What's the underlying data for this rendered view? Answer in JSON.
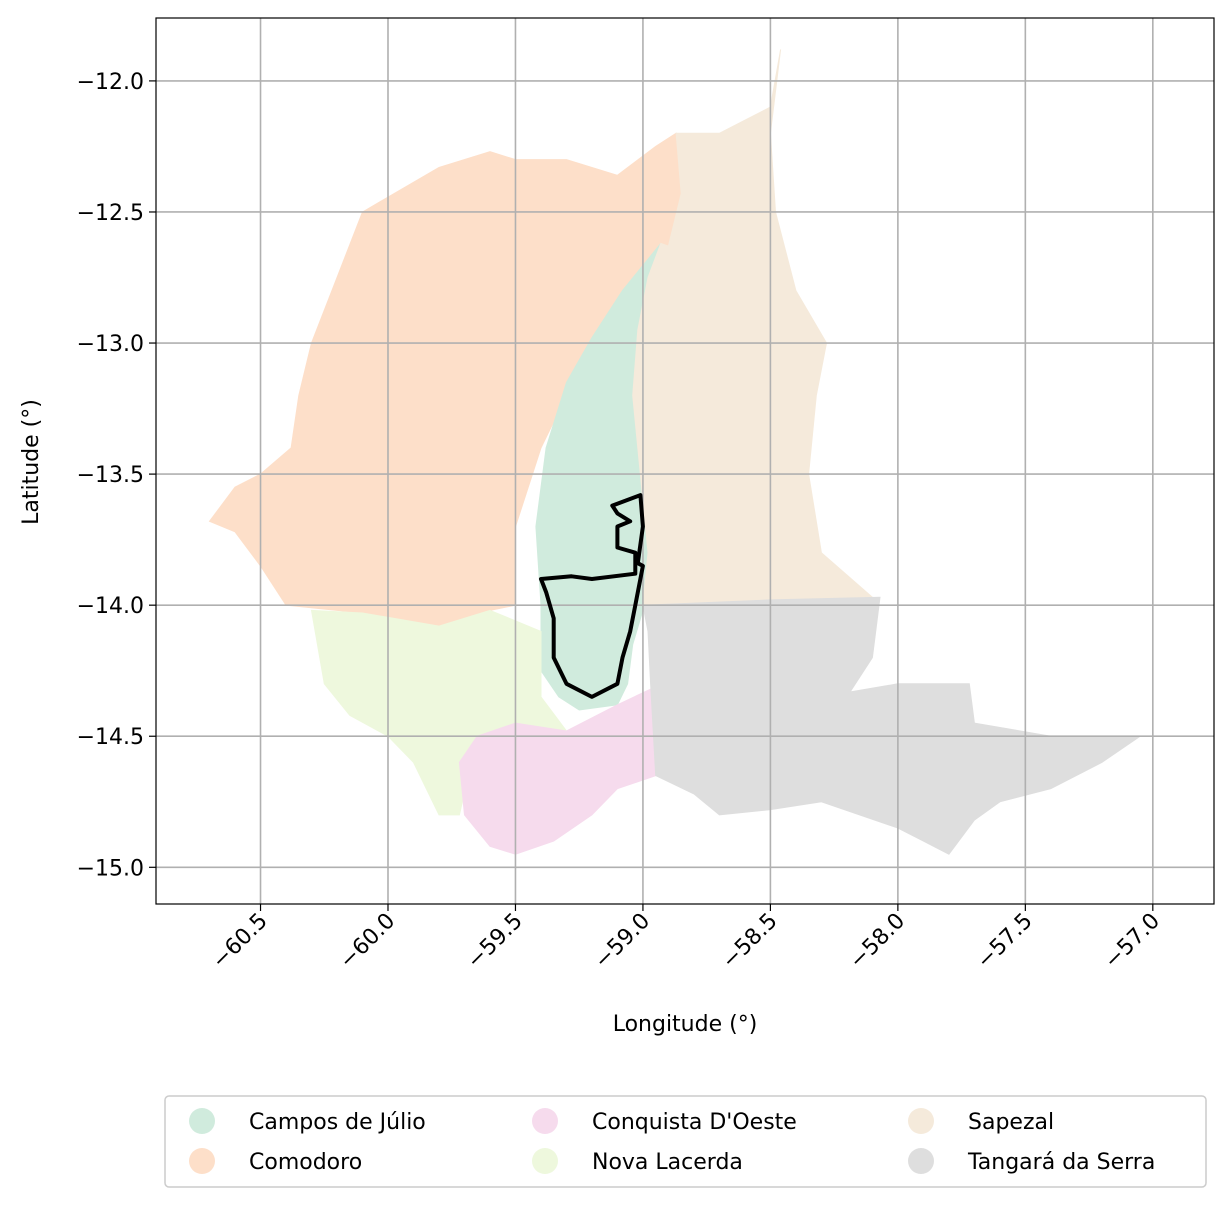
{
  "chart_data": {
    "type": "map",
    "title": "",
    "xlabel": "Longitude (°)",
    "ylabel": "Latitude (°)",
    "xlim": [
      -60.91,
      -56.76
    ],
    "ylim": [
      -15.14,
      -11.76
    ],
    "xticks": [
      -60.5,
      -60.0,
      -59.5,
      -59.0,
      -58.5,
      -58.0,
      -57.5,
      -57.0
    ],
    "xtick_labels": [
      "−60.5",
      "−60.0",
      "−59.5",
      "−59.0",
      "−58.5",
      "−58.0",
      "−57.5",
      "−57.0"
    ],
    "yticks": [
      -12.0,
      -12.5,
      -13.0,
      -13.5,
      -14.0,
      -14.5,
      -15.0
    ],
    "ytick_labels": [
      "−12.0",
      "−12.5",
      "−13.0",
      "−13.5",
      "−14.0",
      "−14.5",
      "−15.0"
    ],
    "grid": true,
    "legend_position": "bottom",
    "legend_columns": 3,
    "regions": [
      {
        "name": "Comodoro",
        "color": "#fddfc9",
        "polygon": [
          [
            -60.1,
            -12.5
          ],
          [
            -59.8,
            -12.33
          ],
          [
            -59.6,
            -12.27
          ],
          [
            -59.5,
            -12.3
          ],
          [
            -59.3,
            -12.3
          ],
          [
            -59.1,
            -12.36
          ],
          [
            -58.95,
            -12.25
          ],
          [
            -58.87,
            -12.2
          ],
          [
            -58.85,
            -12.43
          ],
          [
            -58.9,
            -12.63
          ],
          [
            -58.95,
            -12.75
          ],
          [
            -59.1,
            -12.84
          ],
          [
            -59.2,
            -13.0
          ],
          [
            -59.3,
            -13.2
          ],
          [
            -59.4,
            -13.4
          ],
          [
            -59.5,
            -13.7
          ],
          [
            -59.5,
            -14.0
          ],
          [
            -59.6,
            -14.02
          ],
          [
            -59.8,
            -14.08
          ],
          [
            -60.1,
            -14.03
          ],
          [
            -60.4,
            -14.0
          ],
          [
            -60.5,
            -13.85
          ],
          [
            -60.6,
            -13.72
          ],
          [
            -60.7,
            -13.68
          ],
          [
            -60.6,
            -13.55
          ],
          [
            -60.5,
            -13.5
          ],
          [
            -60.38,
            -13.4
          ],
          [
            -60.35,
            -13.2
          ],
          [
            -60.3,
            -13.0
          ],
          [
            -60.2,
            -12.75
          ]
        ]
      },
      {
        "name": "Campos de Júlio",
        "color": "#d0ebdd",
        "polygon": [
          [
            -58.93,
            -12.62
          ],
          [
            -58.98,
            -12.75
          ],
          [
            -59.02,
            -12.95
          ],
          [
            -59.04,
            -13.2
          ],
          [
            -59.0,
            -13.6
          ],
          [
            -58.98,
            -13.8
          ],
          [
            -59.0,
            -14.02
          ],
          [
            -59.04,
            -14.15
          ],
          [
            -59.06,
            -14.3
          ],
          [
            -59.1,
            -14.38
          ],
          [
            -59.25,
            -14.4
          ],
          [
            -59.33,
            -14.35
          ],
          [
            -59.4,
            -14.25
          ],
          [
            -59.4,
            -14.0
          ],
          [
            -59.42,
            -13.7
          ],
          [
            -59.38,
            -13.4
          ],
          [
            -59.3,
            -13.15
          ],
          [
            -59.2,
            -12.98
          ],
          [
            -59.08,
            -12.8
          ]
        ]
      },
      {
        "name": "Sapezal",
        "color": "#f5eadb",
        "polygon": [
          [
            -58.46,
            -11.88
          ],
          [
            -58.5,
            -12.1
          ],
          [
            -58.6,
            -12.15
          ],
          [
            -58.7,
            -12.2
          ],
          [
            -58.87,
            -12.2
          ],
          [
            -58.85,
            -12.43
          ],
          [
            -58.9,
            -12.63
          ],
          [
            -58.93,
            -12.62
          ],
          [
            -58.98,
            -12.75
          ],
          [
            -59.02,
            -12.95
          ],
          [
            -59.04,
            -13.2
          ],
          [
            -59.0,
            -13.6
          ],
          [
            -58.98,
            -13.8
          ],
          [
            -59.0,
            -14.0
          ],
          [
            -58.5,
            -13.98
          ],
          [
            -58.1,
            -13.97
          ],
          [
            -58.3,
            -13.8
          ],
          [
            -58.35,
            -13.5
          ],
          [
            -58.32,
            -13.2
          ],
          [
            -58.28,
            -13.0
          ],
          [
            -58.4,
            -12.8
          ],
          [
            -58.48,
            -12.5
          ],
          [
            -58.5,
            -12.2
          ]
        ]
      },
      {
        "name": "Nova Lacerda",
        "color": "#eef8dd",
        "polygon": [
          [
            -60.3,
            -14.02
          ],
          [
            -60.1,
            -14.03
          ],
          [
            -59.8,
            -14.08
          ],
          [
            -59.6,
            -14.02
          ],
          [
            -59.4,
            -14.1
          ],
          [
            -59.4,
            -14.35
          ],
          [
            -59.3,
            -14.48
          ],
          [
            -59.5,
            -14.5
          ],
          [
            -59.65,
            -14.5
          ],
          [
            -59.72,
            -14.8
          ],
          [
            -59.8,
            -14.8
          ],
          [
            -59.9,
            -14.6
          ],
          [
            -60.0,
            -14.5
          ],
          [
            -60.15,
            -14.42
          ],
          [
            -60.25,
            -14.3
          ]
        ]
      },
      {
        "name": "Conquista D'Oeste",
        "color": "#f6dbed",
        "polygon": [
          [
            -59.65,
            -14.5
          ],
          [
            -59.5,
            -14.45
          ],
          [
            -59.3,
            -14.48
          ],
          [
            -59.1,
            -14.38
          ],
          [
            -58.97,
            -14.32
          ],
          [
            -58.95,
            -14.65
          ],
          [
            -59.1,
            -14.7
          ],
          [
            -59.2,
            -14.8
          ],
          [
            -59.35,
            -14.9
          ],
          [
            -59.5,
            -14.95
          ],
          [
            -59.6,
            -14.92
          ],
          [
            -59.7,
            -14.8
          ],
          [
            -59.72,
            -14.6
          ]
        ]
      },
      {
        "name": "Tangará da Serra",
        "color": "#dedede",
        "polygon": [
          [
            -59.0,
            -14.0
          ],
          [
            -58.5,
            -13.98
          ],
          [
            -58.07,
            -13.97
          ],
          [
            -58.1,
            -14.2
          ],
          [
            -58.2,
            -14.35
          ],
          [
            -58.3,
            -14.35
          ],
          [
            -58.0,
            -14.3
          ],
          [
            -57.72,
            -14.3
          ],
          [
            -57.7,
            -14.45
          ],
          [
            -57.4,
            -14.5
          ],
          [
            -57.2,
            -14.5
          ],
          [
            -57.05,
            -14.5
          ],
          [
            -57.2,
            -14.6
          ],
          [
            -57.4,
            -14.7
          ],
          [
            -57.6,
            -14.75
          ],
          [
            -57.7,
            -14.82
          ],
          [
            -57.8,
            -14.95
          ],
          [
            -57.9,
            -14.9
          ],
          [
            -58.0,
            -14.85
          ],
          [
            -58.3,
            -14.75
          ],
          [
            -58.5,
            -14.78
          ],
          [
            -58.7,
            -14.8
          ],
          [
            -58.8,
            -14.72
          ],
          [
            -58.95,
            -14.65
          ],
          [
            -58.97,
            -14.3
          ],
          [
            -58.98,
            -14.1
          ]
        ]
      }
    ],
    "highlight_outline": {
      "name": "",
      "color": "#000000",
      "polygon": [
        [
          -59.12,
          -13.62
        ],
        [
          -59.01,
          -13.58
        ],
        [
          -59.0,
          -13.7
        ],
        [
          -59.02,
          -13.84
        ],
        [
          -59.0,
          -13.85
        ],
        [
          -59.03,
          -14.0
        ],
        [
          -59.05,
          -14.1
        ],
        [
          -59.08,
          -14.2
        ],
        [
          -59.1,
          -14.3
        ],
        [
          -59.2,
          -14.35
        ],
        [
          -59.3,
          -14.3
        ],
        [
          -59.35,
          -14.2
        ],
        [
          -59.35,
          -14.05
        ],
        [
          -59.38,
          -13.95
        ],
        [
          -59.4,
          -13.9
        ],
        [
          -59.28,
          -13.89
        ],
        [
          -59.2,
          -13.9
        ],
        [
          -59.03,
          -13.88
        ],
        [
          -59.03,
          -13.8
        ],
        [
          -59.1,
          -13.78
        ],
        [
          -59.1,
          -13.7
        ],
        [
          -59.05,
          -13.68
        ],
        [
          -59.1,
          -13.65
        ]
      ]
    },
    "legend": [
      {
        "name": "Campos de Júlio",
        "color": "#d0ebdd"
      },
      {
        "name": "Comodoro",
        "color": "#fddfc9"
      },
      {
        "name": "Conquista D'Oeste",
        "color": "#f6dbed"
      },
      {
        "name": "Nova Lacerda",
        "color": "#eef8dd"
      },
      {
        "name": "Sapezal",
        "color": "#f5eadb"
      },
      {
        "name": "Tangará da Serra",
        "color": "#dedede"
      }
    ]
  }
}
